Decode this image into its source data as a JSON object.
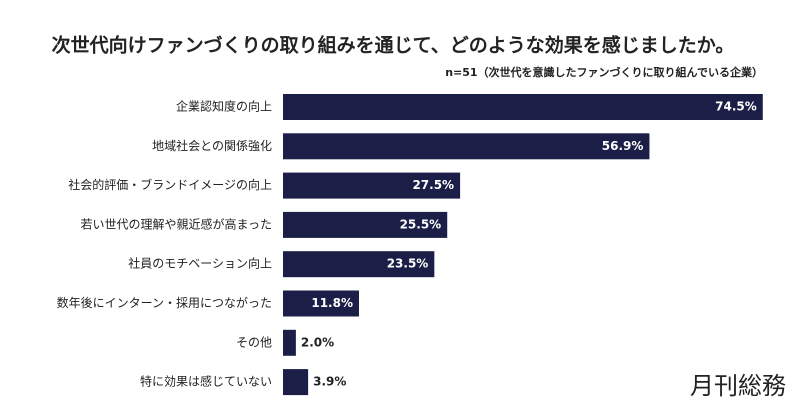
{
  "chart_data": {
    "type": "bar",
    "orientation": "horizontal",
    "title": "次世代向けファンづくりの取り組みを通じて、どのような効果を感じましたか。",
    "subtitle": "n=51（次世代を意識したファンづくりに取り組んでいる企業）",
    "categories": [
      "企業認知度の向上",
      "地域社会との関係強化",
      "社会的評価・ブランドイメージの向上",
      "若い世代の理解や親近感が高まった",
      "社員のモチベーション向上",
      "数年後にインターン・採用につながった",
      "その他",
      "特に効果は感じていない"
    ],
    "values": [
      74.5,
      56.9,
      27.5,
      25.5,
      23.5,
      11.8,
      2.0,
      3.9
    ],
    "value_labels": [
      "74.5%",
      "56.9%",
      "27.5%",
      "25.5%",
      "23.5%",
      "11.8%",
      "2.0%",
      "3.9%"
    ],
    "color": "#1b1f47"
  },
  "brand": "月刊総務"
}
